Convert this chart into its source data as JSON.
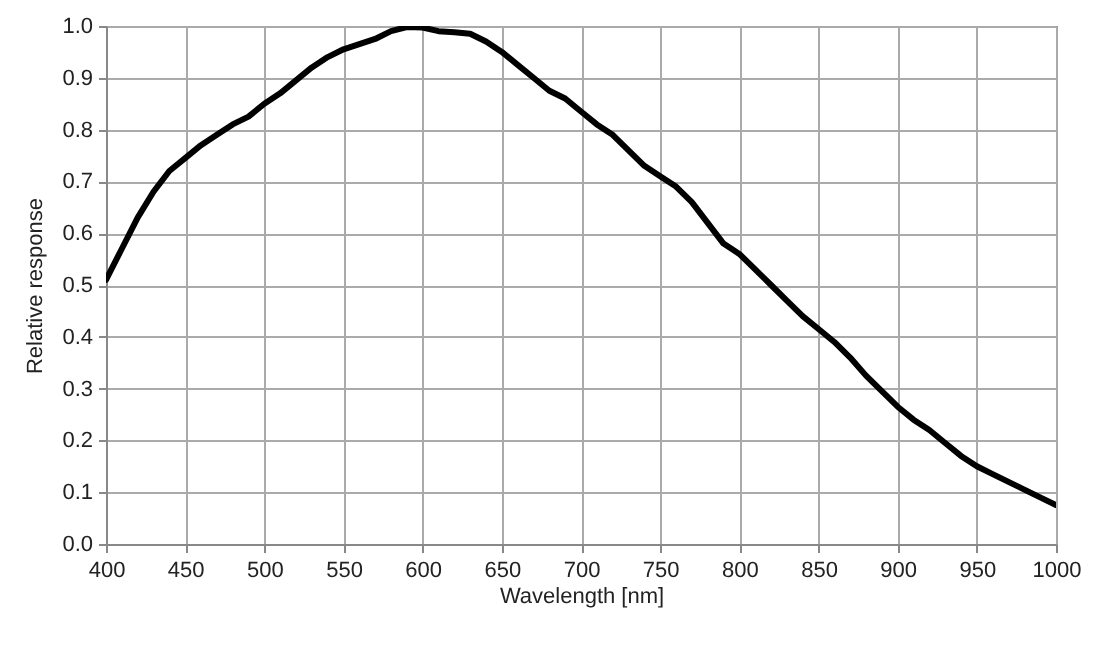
{
  "chart_data": {
    "type": "line",
    "xlabel": "Wavelength [nm]",
    "ylabel": "Relative response",
    "x": [
      400,
      410,
      420,
      430,
      440,
      450,
      460,
      470,
      480,
      490,
      500,
      510,
      520,
      530,
      540,
      550,
      560,
      570,
      580,
      590,
      600,
      610,
      620,
      630,
      640,
      650,
      660,
      670,
      680,
      690,
      700,
      710,
      720,
      730,
      740,
      750,
      760,
      770,
      780,
      790,
      800,
      810,
      820,
      830,
      840,
      850,
      860,
      870,
      880,
      890,
      900,
      910,
      920,
      930,
      940,
      950,
      960,
      970,
      980,
      990,
      1000
    ],
    "series": [
      {
        "color": "#000000",
        "values": [
          0.51,
          0.57,
          0.63,
          0.68,
          0.72,
          0.745,
          0.77,
          0.79,
          0.81,
          0.825,
          0.85,
          0.87,
          0.895,
          0.92,
          0.94,
          0.955,
          0.965,
          0.975,
          0.99,
          0.998,
          0.997,
          0.99,
          0.988,
          0.985,
          0.97,
          0.95,
          0.925,
          0.9,
          0.875,
          0.86,
          0.835,
          0.81,
          0.79,
          0.76,
          0.73,
          0.71,
          0.69,
          0.66,
          0.62,
          0.58,
          0.56,
          0.53,
          0.5,
          0.47,
          0.44,
          0.415,
          0.39,
          0.36,
          0.325,
          0.295,
          0.265,
          0.24,
          0.22,
          0.195,
          0.17,
          0.15,
          0.135,
          0.12,
          0.105,
          0.09,
          0.075
        ]
      }
    ],
    "xlim": [
      400,
      1000
    ],
    "xticks": [
      400,
      450,
      500,
      550,
      600,
      650,
      700,
      750,
      800,
      850,
      900,
      950,
      1000
    ],
    "ylim": [
      0,
      1
    ],
    "yticks": [
      {
        "value": 0,
        "label": "0.0"
      },
      0.1,
      0.2,
      0.3,
      0.4,
      0.5,
      0.6,
      0.7,
      0.8,
      0.9,
      {
        "value": 1,
        "label": "1.0"
      }
    ],
    "grid": true,
    "marker": "none",
    "line_style": "solid"
  }
}
